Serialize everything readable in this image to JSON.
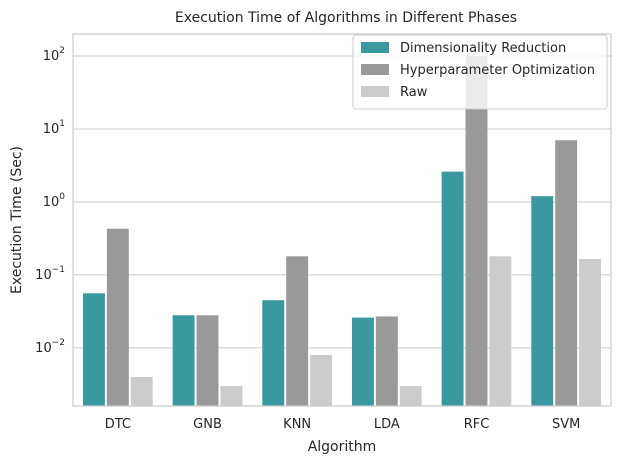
{
  "chart_data": {
    "type": "bar",
    "title": "Execution Time of Algorithms in Different Phases",
    "xlabel": "Algorithm",
    "ylabel": "Execution Time (Sec)",
    "yscale": "log",
    "ylim": [
      0.0016,
      200
    ],
    "yticks": [
      {
        "value": 0.01,
        "base": "10",
        "exp": "−2"
      },
      {
        "value": 0.1,
        "base": "10",
        "exp": "−1"
      },
      {
        "value": 1,
        "base": "10",
        "exp": "0"
      },
      {
        "value": 10,
        "base": "10",
        "exp": "1"
      },
      {
        "value": 100,
        "base": "10",
        "exp": "2"
      }
    ],
    "grid": true,
    "legend_position": "top-right",
    "categories": [
      "DTC",
      "GNB",
      "KNN",
      "LDA",
      "RFC",
      "SVM"
    ],
    "series": [
      {
        "name": "Dimensionality Reduction",
        "color": "#39999e",
        "values": [
          0.056,
          0.028,
          0.045,
          0.026,
          2.6,
          1.2
        ]
      },
      {
        "name": "Hyperparameter Optimization",
        "color": "#999999",
        "values": [
          0.43,
          0.028,
          0.18,
          0.027,
          100,
          7.0
        ]
      },
      {
        "name": "Raw",
        "color": "#cccccc",
        "values": [
          0.004,
          0.003,
          0.008,
          0.003,
          0.18,
          0.165
        ]
      }
    ]
  }
}
